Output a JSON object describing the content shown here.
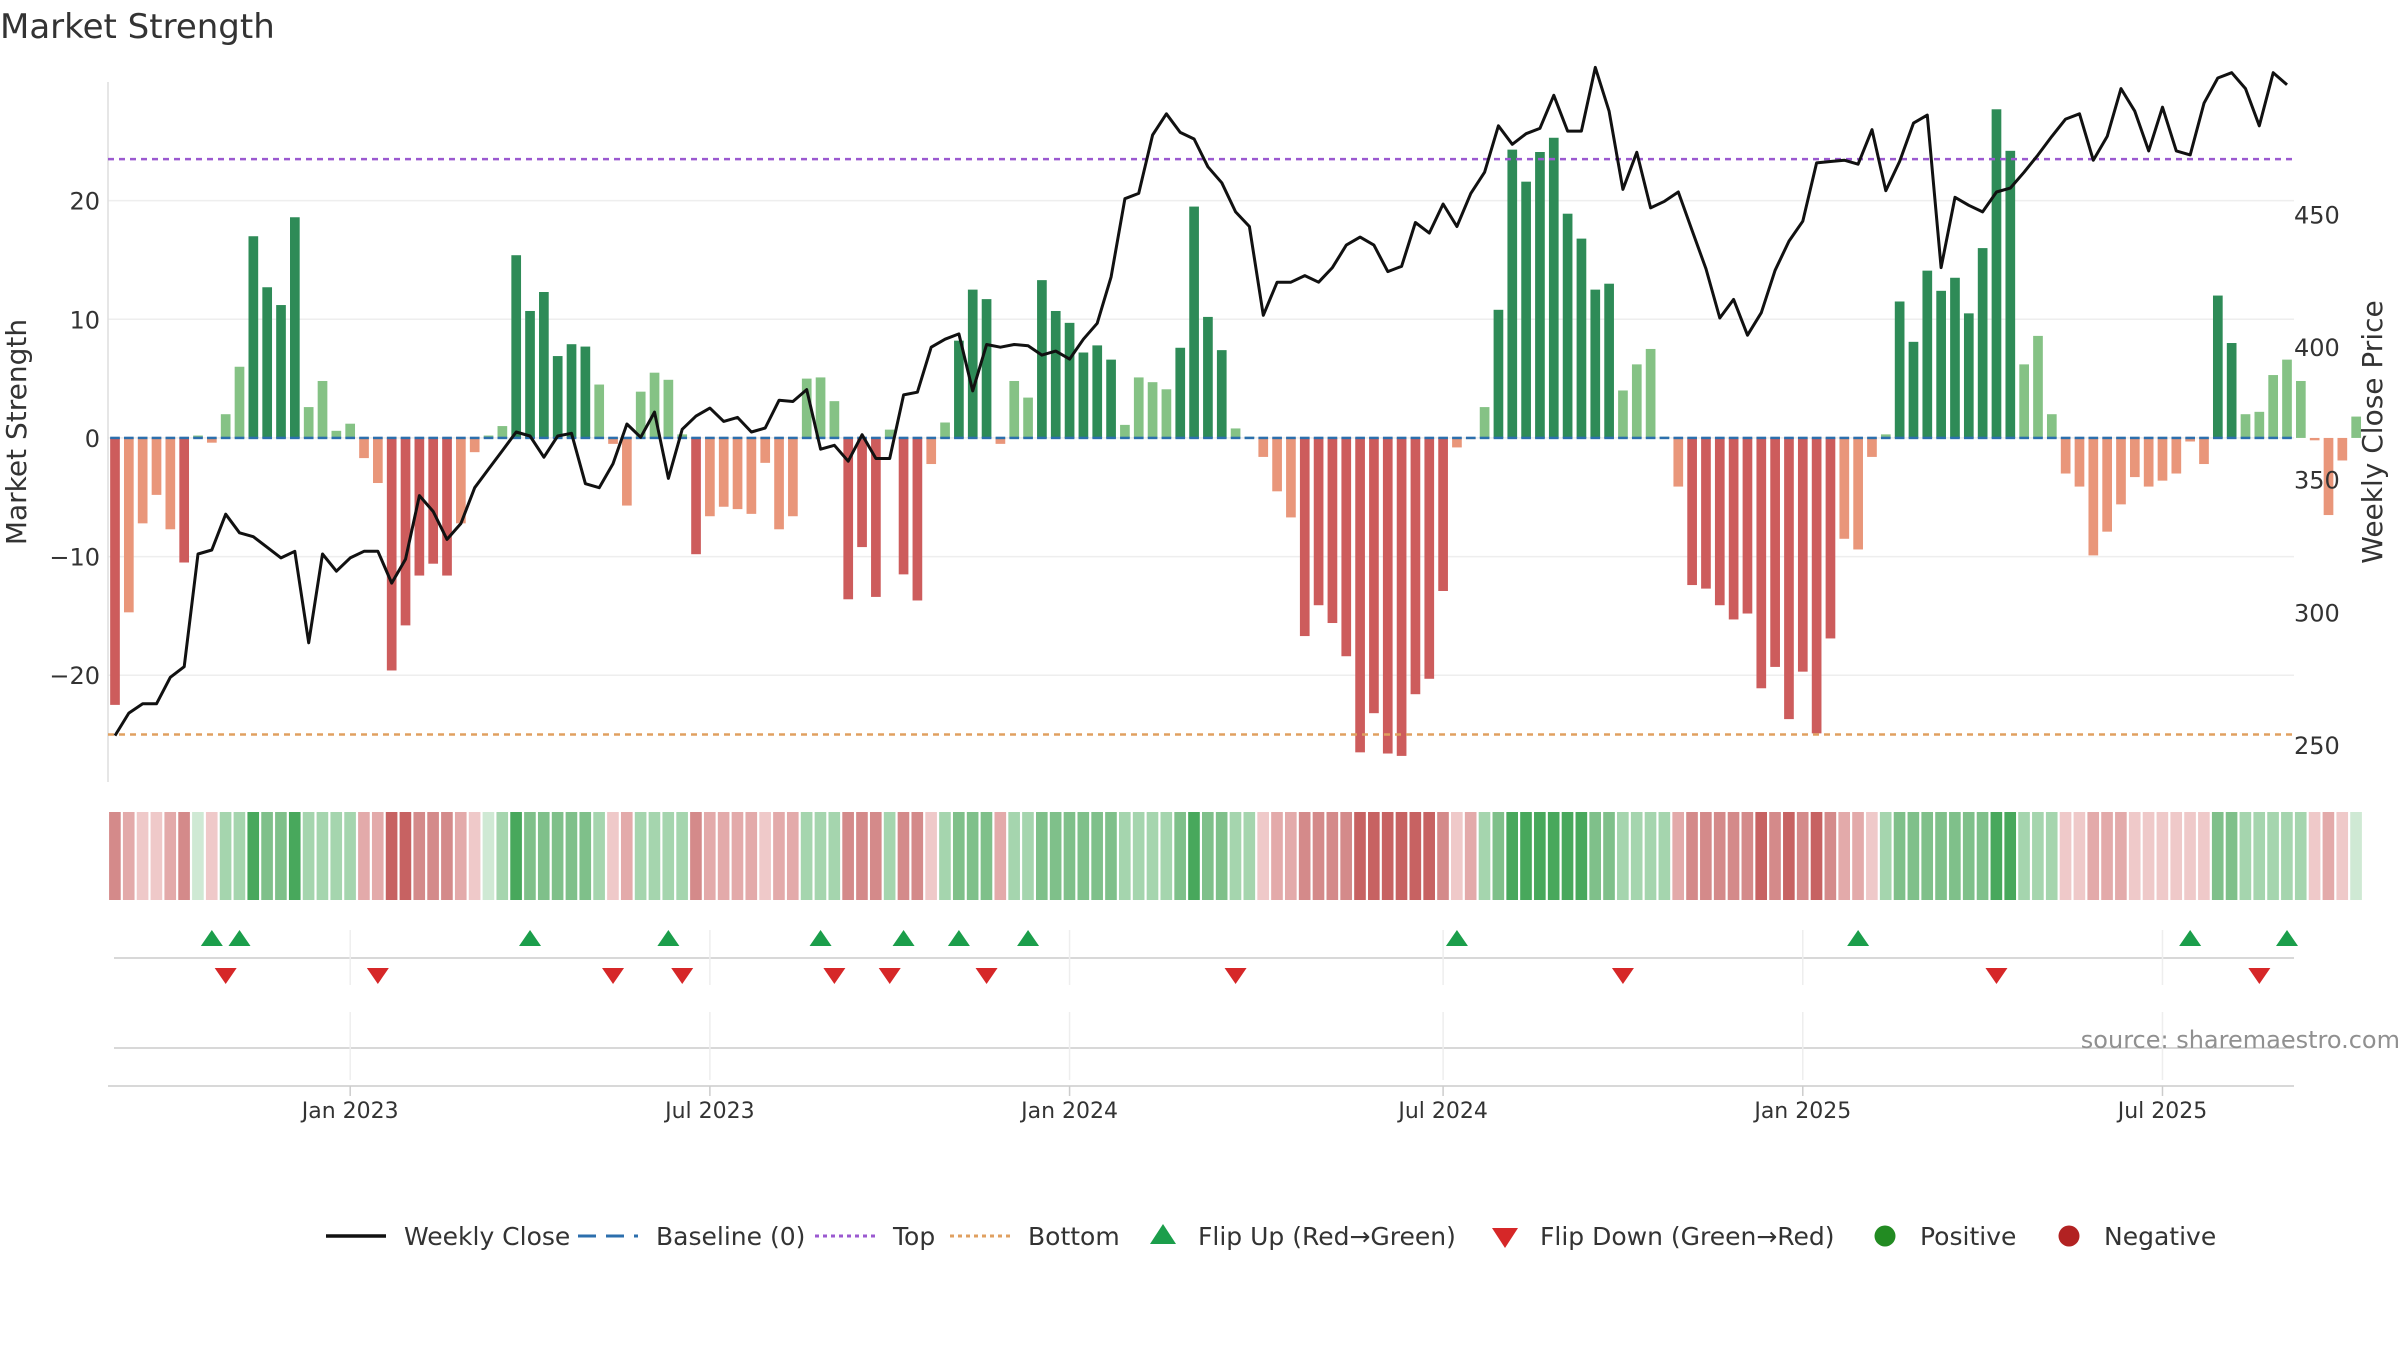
{
  "chart_data": {
    "type": "bar",
    "title": "Market Strength",
    "ylabel_left": "Market Strength",
    "ylabel_right": "Weekly Close Price",
    "source": "source: sharemaestro.com",
    "left_axis": {
      "range": [
        -29,
        30
      ],
      "ticks": [
        20,
        10,
        0,
        -10,
        -20
      ],
      "tick_labels": [
        "20",
        "10",
        "0",
        "−10",
        "−20"
      ]
    },
    "right_axis": {
      "range": [
        236,
        500
      ],
      "ticks": [
        450,
        400,
        350,
        300,
        250
      ],
      "tick_labels": [
        "450",
        "400",
        "350",
        "300",
        "250"
      ]
    },
    "x_axis": {
      "labels": [
        "Jan 2023",
        "Jul 2023",
        "Jan 2024",
        "Jul 2024",
        "Jan 2025",
        "Jul 2025"
      ],
      "label_week_index": [
        17,
        43,
        69,
        96,
        122,
        148
      ]
    },
    "reference_lines": {
      "top": 23.5,
      "bottom": -25,
      "baseline": 0
    },
    "weeks": 158,
    "strength": [
      -22.5,
      -14.7,
      -7.2,
      -4.8,
      -7.7,
      -10.5,
      0.2,
      -0.4,
      2,
      6,
      17,
      12.7,
      11.2,
      18.6,
      2.6,
      4.8,
      0.6,
      1.2,
      -1.7,
      -3.8,
      -19.6,
      -15.8,
      -11.6,
      -10.6,
      -11.6,
      -7.2,
      -1.2,
      0.2,
      1,
      15.4,
      10.7,
      12.3,
      6.9,
      7.9,
      7.7,
      4.5,
      -0.5,
      -5.7,
      3.9,
      5.5,
      4.9,
      0.3,
      -9.8,
      -6.6,
      -5.8,
      -6,
      -6.4,
      -2.1,
      -7.7,
      -6.6,
      5,
      5.1,
      3.1,
      -13.6,
      -9.2,
      -13.4,
      0.7,
      -11.5,
      -13.7,
      -2.2,
      1.3,
      8.2,
      12.5,
      11.7,
      -0.5,
      4.8,
      3.4,
      13.3,
      10.7,
      9.7,
      7.2,
      7.8,
      6.6,
      1.1,
      5.1,
      4.7,
      4.1,
      7.6,
      19.5,
      10.2,
      7.4,
      0.8,
      0.1,
      -1.6,
      -4.5,
      -6.7,
      -16.7,
      -14.1,
      -15.6,
      -18.4,
      -26.5,
      -23.2,
      -26.6,
      -26.8,
      -21.6,
      -20.3,
      -12.9,
      -0.8,
      -0.1,
      2.6,
      10.8,
      24.3,
      21.6,
      24.1,
      25.3,
      18.9,
      16.8,
      12.5,
      13,
      4,
      6.2,
      7.5,
      0.1,
      -4.1,
      -12.4,
      -12.7,
      -14.1,
      -15.3,
      -14.8,
      -21.1,
      -19.3,
      -23.7,
      -19.7,
      -24.9,
      -16.9,
      -8.5,
      -9.4,
      -1.6,
      0.3,
      11.5,
      8.1,
      14.1,
      12.4,
      13.5,
      10.5,
      16,
      27.7,
      24.2,
      6.2,
      8.6,
      2,
      -3,
      -4.1,
      -9.9,
      -7.9,
      -5.6,
      -3.3,
      -4.1,
      -3.6,
      -3,
      -0.3,
      -2.2,
      12,
      8,
      2,
      2.2,
      5.3,
      6.6,
      4.8,
      -0.2,
      -6.5,
      -1.9,
      1.8
    ],
    "close": [
      253.5,
      262,
      265.5,
      265.5,
      275.5,
      279.5,
      322,
      323.5,
      337,
      330,
      328.5,
      324.5,
      320.5,
      323,
      288.5,
      322,
      315.5,
      320.5,
      323,
      323,
      311,
      320,
      344,
      338,
      327.5,
      333.5,
      347,
      354,
      361,
      368,
      366.5,
      358.5,
      366.5,
      367.5,
      348.5,
      347,
      356,
      371,
      366,
      375.5,
      350.5,
      369,
      374,
      377,
      372,
      373.5,
      368,
      369.5,
      380,
      379.5,
      384,
      361.5,
      363,
      357,
      367,
      358,
      358,
      382,
      383,
      400,
      403,
      405,
      383.5,
      401,
      400,
      401,
      400.5,
      397,
      398.5,
      395.5,
      403,
      409,
      426.5,
      456,
      458,
      480,
      488,
      481,
      478.5,
      468,
      462,
      451,
      445.5,
      412,
      424.5,
      424.5,
      427,
      424.5,
      430,
      438.5,
      441.5,
      438.5,
      428.5,
      430.5,
      447,
      443,
      454,
      445.5,
      458,
      466,
      483.5,
      476.5,
      480.5,
      482.5,
      495,
      481.5,
      481.5,
      505.5,
      489,
      459.5,
      473.5,
      452.5,
      455,
      458.5,
      444,
      429.5,
      411,
      418,
      404.5,
      413,
      429,
      440,
      447.5,
      469.5,
      470,
      470.5,
      469,
      482,
      459,
      470,
      484.5,
      487.5,
      430,
      456.5,
      453.5,
      451,
      458.5,
      460,
      466,
      472.5,
      479.5,
      486,
      488,
      470.5,
      479.5,
      497.5,
      489,
      474,
      490.5,
      474,
      472.5,
      492,
      501.5,
      503.5,
      497.5,
      483.5,
      503.5,
      499
    ],
    "band_intensity": [
      2,
      1,
      0,
      0,
      1,
      2,
      0,
      0,
      1,
      1,
      3,
      2,
      2,
      3,
      1,
      1,
      1,
      1,
      1,
      1,
      3,
      3,
      2,
      2,
      2,
      1,
      0,
      0,
      1,
      3,
      2,
      2,
      2,
      2,
      2,
      1,
      0,
      1,
      1,
      1,
      1,
      1,
      2,
      1,
      1,
      1,
      1,
      0,
      1,
      1,
      1,
      1,
      1,
      2,
      2,
      2,
      1,
      2,
      2,
      0,
      1,
      2,
      2,
      2,
      1,
      1,
      1,
      2,
      2,
      2,
      2,
      2,
      2,
      1,
      1,
      1,
      1,
      2,
      3,
      2,
      2,
      1,
      1,
      0,
      1,
      1,
      2,
      2,
      2,
      2,
      3,
      3,
      3,
      3,
      3,
      3,
      2,
      0,
      1,
      1,
      2,
      3,
      3,
      3,
      3,
      3,
      3,
      2,
      2,
      1,
      1,
      1,
      1,
      1,
      2,
      2,
      2,
      2,
      2,
      3,
      2,
      3,
      2,
      3,
      2,
      1,
      1,
      0,
      1,
      2,
      2,
      2,
      2,
      2,
      2,
      2,
      3,
      3,
      1,
      1,
      1,
      0,
      0,
      1,
      1,
      1,
      0,
      0,
      0,
      0,
      0,
      0,
      2,
      2,
      1,
      1,
      1,
      1,
      1,
      0,
      1,
      0,
      0
    ],
    "flips_up": [
      7,
      9,
      30,
      40,
      51,
      57,
      61,
      66,
      97,
      126,
      150,
      157
    ],
    "flips_down": [
      8,
      19,
      36,
      41,
      52,
      56,
      63,
      81,
      109,
      136,
      155
    ],
    "legend": [
      "Weekly Close",
      "Baseline (0)",
      "Top",
      "Bottom",
      "Flip Up (Red→Green)",
      "Flip Down (Green→Red)",
      "Positive",
      "Negative"
    ],
    "colors": {
      "pos_dark": "#2e8b57",
      "pos_light": "#85c285",
      "neg_dark": "#cd5c5c",
      "neg_light": "#e9967a",
      "top_line": "#9b59d0",
      "bottom_line": "#e0a060",
      "baseline": "#2c6fad",
      "close_line": "#111111",
      "flip_up": "#1b9e4b",
      "flip_down": "#d62728",
      "legend_positive": "#228b22",
      "legend_negative": "#b22222"
    }
  }
}
